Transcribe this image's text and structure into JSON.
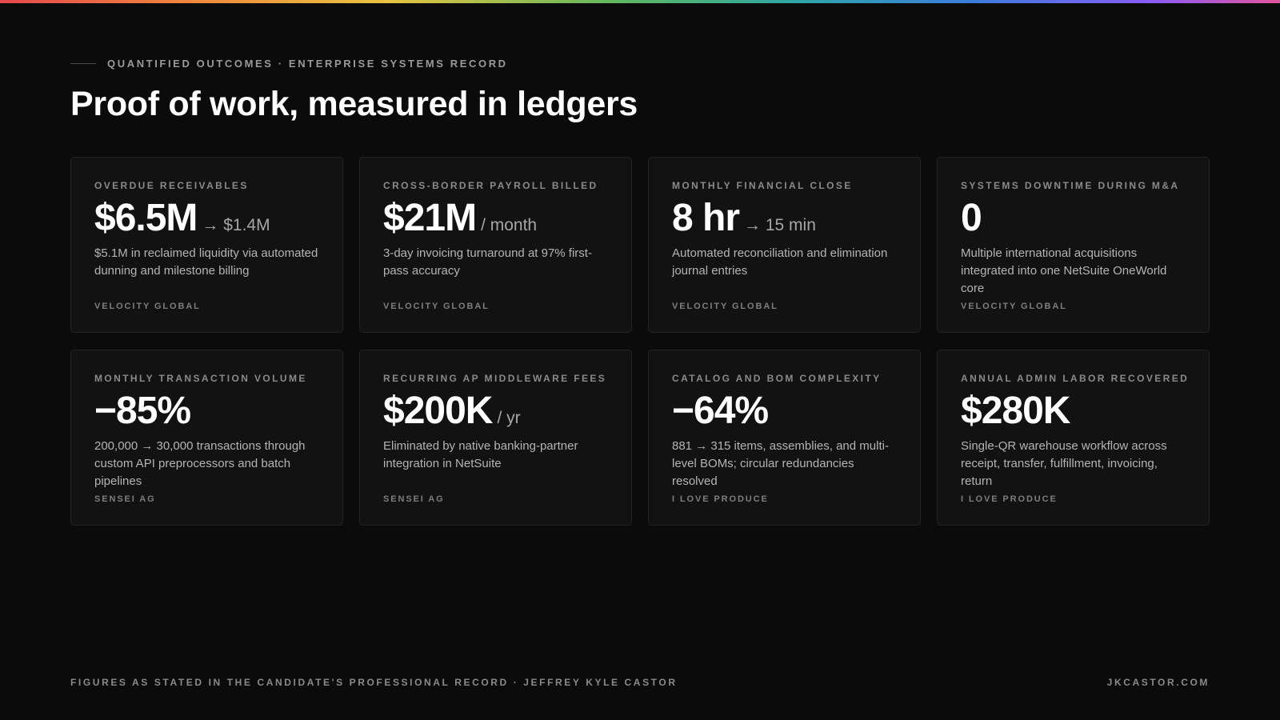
{
  "eyebrow": "QUANTIFIED OUTCOMES · ENTERPRISE SYSTEMS RECORD",
  "headline": "Proof of work, measured in ledgers",
  "cards": [
    {
      "label": "OVERDUE RECEIVABLES",
      "value": "$6.5M",
      "unit": "→ $1.4M",
      "desc": "$5.1M in reclaimed liquidity via automated dunning and milestone billing",
      "source": "VELOCITY GLOBAL"
    },
    {
      "label": "CROSS-BORDER PAYROLL BILLED",
      "value": "$21M",
      "unit": "/ month",
      "desc": "3-day invoicing turnaround at 97% first-pass accuracy",
      "source": "VELOCITY GLOBAL"
    },
    {
      "label": "MONTHLY FINANCIAL CLOSE",
      "value": "8 hr",
      "unit": "→ 15 min",
      "desc": "Automated reconciliation and elimination journal entries",
      "source": "VELOCITY GLOBAL"
    },
    {
      "label": "SYSTEMS DOWNTIME DURING M&A",
      "value": "0",
      "unit": "",
      "desc": "Multiple international acquisitions integrated into one NetSuite OneWorld core",
      "source": "VELOCITY GLOBAL"
    },
    {
      "label": "MONTHLY TRANSACTION VOLUME",
      "value": "−85%",
      "unit": "",
      "desc": "200,000 → 30,000 transactions through custom API preprocessors and batch pipelines",
      "source": "SENSEI AG"
    },
    {
      "label": "RECURRING AP MIDDLEWARE FEES",
      "value": "$200K",
      "unit": "/ yr",
      "desc": "Eliminated by native banking-partner integration in NetSuite",
      "source": "SENSEI AG"
    },
    {
      "label": "CATALOG AND BOM COMPLEXITY",
      "value": "−64%",
      "unit": "",
      "desc": "881 → 315 items, assemblies, and multi-level BOMs; circular redundancies resolved",
      "source": "I LOVE PRODUCE"
    },
    {
      "label": "ANNUAL ADMIN LABOR RECOVERED",
      "value": "$280K",
      "unit": "",
      "desc": "Single-QR warehouse workflow across receipt, transfer, fulfillment, invoicing, return",
      "source": "I LOVE PRODUCE"
    }
  ],
  "footer": {
    "left": "FIGURES AS STATED IN THE CANDIDATE'S PROFESSIONAL RECORD · JEFFREY KYLE CASTOR",
    "right": "JKCASTOR.COM"
  },
  "colors": {
    "background": "#0b0b0b",
    "card": "#121212",
    "text": "#ffffff",
    "muted": "#8a8a8a"
  }
}
